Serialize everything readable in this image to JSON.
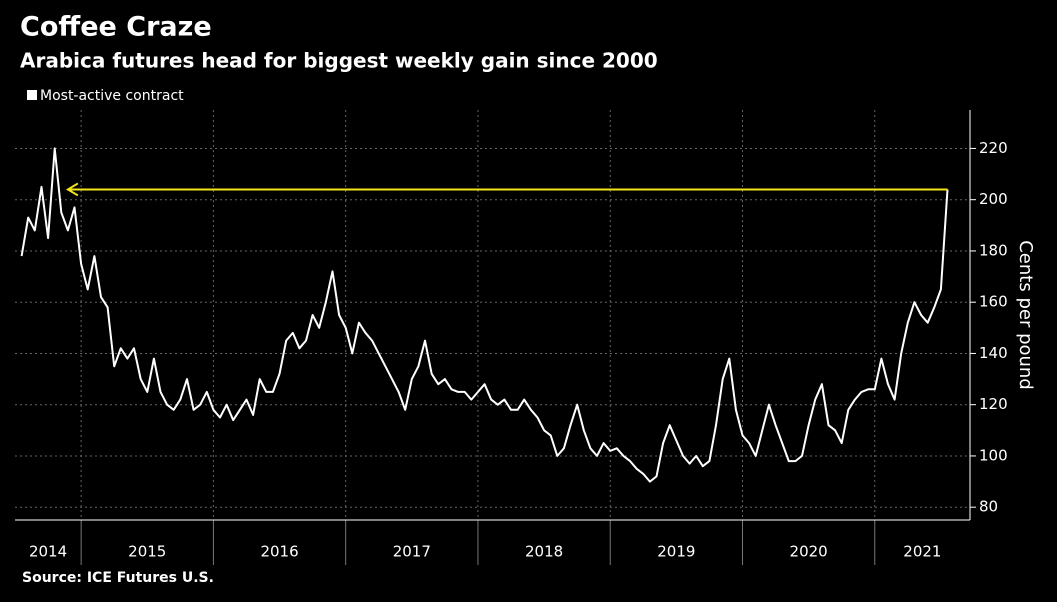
{
  "chart_data": {
    "type": "line",
    "title": "Coffee Craze",
    "subtitle": "Arabica futures head for biggest weekly gain since 2000",
    "y_label": "Cents per pound",
    "source": "Source: ICE Futures U.S.",
    "x_labels": [
      "2014",
      "2015",
      "2016",
      "2017",
      "2018",
      "2019",
      "2020",
      "2021"
    ],
    "xlim": [
      2014.5,
      2021.72
    ],
    "xticks": [
      2015,
      2016,
      2017,
      2018,
      2019,
      2020,
      2021
    ],
    "ylim": [
      75,
      235
    ],
    "yticks": [
      80,
      100,
      120,
      140,
      160,
      180,
      200,
      220
    ],
    "grid": true,
    "x": [
      2014.55,
      2014.6,
      2014.65,
      2014.7,
      2014.75,
      2014.8,
      2014.85,
      2014.9,
      2014.95,
      2015.0,
      2015.05,
      2015.1,
      2015.15,
      2015.2,
      2015.25,
      2015.3,
      2015.35,
      2015.4,
      2015.45,
      2015.5,
      2015.55,
      2015.6,
      2015.65,
      2015.7,
      2015.75,
      2015.8,
      2015.85,
      2015.9,
      2015.95,
      2016.0,
      2016.05,
      2016.1,
      2016.15,
      2016.2,
      2016.25,
      2016.3,
      2016.35,
      2016.4,
      2016.45,
      2016.5,
      2016.55,
      2016.6,
      2016.65,
      2016.7,
      2016.75,
      2016.8,
      2016.85,
      2016.9,
      2016.95,
      2017.0,
      2017.05,
      2017.1,
      2017.15,
      2017.2,
      2017.25,
      2017.3,
      2017.35,
      2017.4,
      2017.45,
      2017.5,
      2017.55,
      2017.6,
      2017.65,
      2017.7,
      2017.75,
      2017.8,
      2017.85,
      2017.9,
      2017.95,
      2018.0,
      2018.05,
      2018.1,
      2018.15,
      2018.2,
      2018.25,
      2018.3,
      2018.35,
      2018.4,
      2018.45,
      2018.5,
      2018.55,
      2018.6,
      2018.65,
      2018.7,
      2018.75,
      2018.8,
      2018.85,
      2018.9,
      2018.95,
      2019.0,
      2019.05,
      2019.1,
      2019.15,
      2019.2,
      2019.25,
      2019.3,
      2019.35,
      2019.4,
      2019.45,
      2019.5,
      2019.55,
      2019.6,
      2019.65,
      2019.7,
      2019.75,
      2019.8,
      2019.85,
      2019.9,
      2019.95,
      2020.0,
      2020.05,
      2020.1,
      2020.15,
      2020.2,
      2020.25,
      2020.3,
      2020.35,
      2020.4,
      2020.45,
      2020.5,
      2020.55,
      2020.6,
      2020.65,
      2020.7,
      2020.75,
      2020.8,
      2020.85,
      2020.9,
      2020.95,
      2021.0,
      2021.05,
      2021.1,
      2021.15,
      2021.2,
      2021.25,
      2021.3,
      2021.35,
      2021.4,
      2021.45,
      2021.5,
      2021.55
    ],
    "series": [
      {
        "name": "Most-active contract",
        "color": "#ffffff",
        "values": [
          178,
          193,
          188,
          205,
          185,
          220,
          195,
          188,
          197,
          175,
          165,
          178,
          162,
          158,
          135,
          142,
          138,
          142,
          130,
          125,
          138,
          125,
          120,
          118,
          122,
          130,
          118,
          120,
          125,
          118,
          115,
          120,
          114,
          118,
          122,
          116,
          130,
          125,
          125,
          132,
          145,
          148,
          142,
          145,
          155,
          150,
          160,
          172,
          155,
          150,
          140,
          152,
          148,
          145,
          140,
          135,
          130,
          125,
          118,
          130,
          135,
          145,
          132,
          128,
          130,
          126,
          125,
          125,
          122,
          125,
          128,
          122,
          120,
          122,
          118,
          118,
          122,
          118,
          115,
          110,
          108,
          100,
          103,
          112,
          120,
          110,
          103,
          100,
          105,
          102,
          103,
          100,
          98,
          95,
          93,
          90,
          92,
          105,
          112,
          106,
          100,
          97,
          100,
          96,
          98,
          112,
          130,
          138,
          118,
          108,
          105,
          100,
          110,
          120,
          112,
          105,
          98,
          98,
          100,
          112,
          122,
          128,
          112,
          110,
          105,
          118,
          122,
          125,
          126,
          126,
          138,
          128,
          122,
          140,
          152,
          160,
          155,
          152,
          158,
          165,
          204
        ]
      }
    ],
    "arrow": {
      "y": 204,
      "x_from": 2021.55,
      "x_to": 2014.9,
      "color": "#f5e61b"
    }
  }
}
